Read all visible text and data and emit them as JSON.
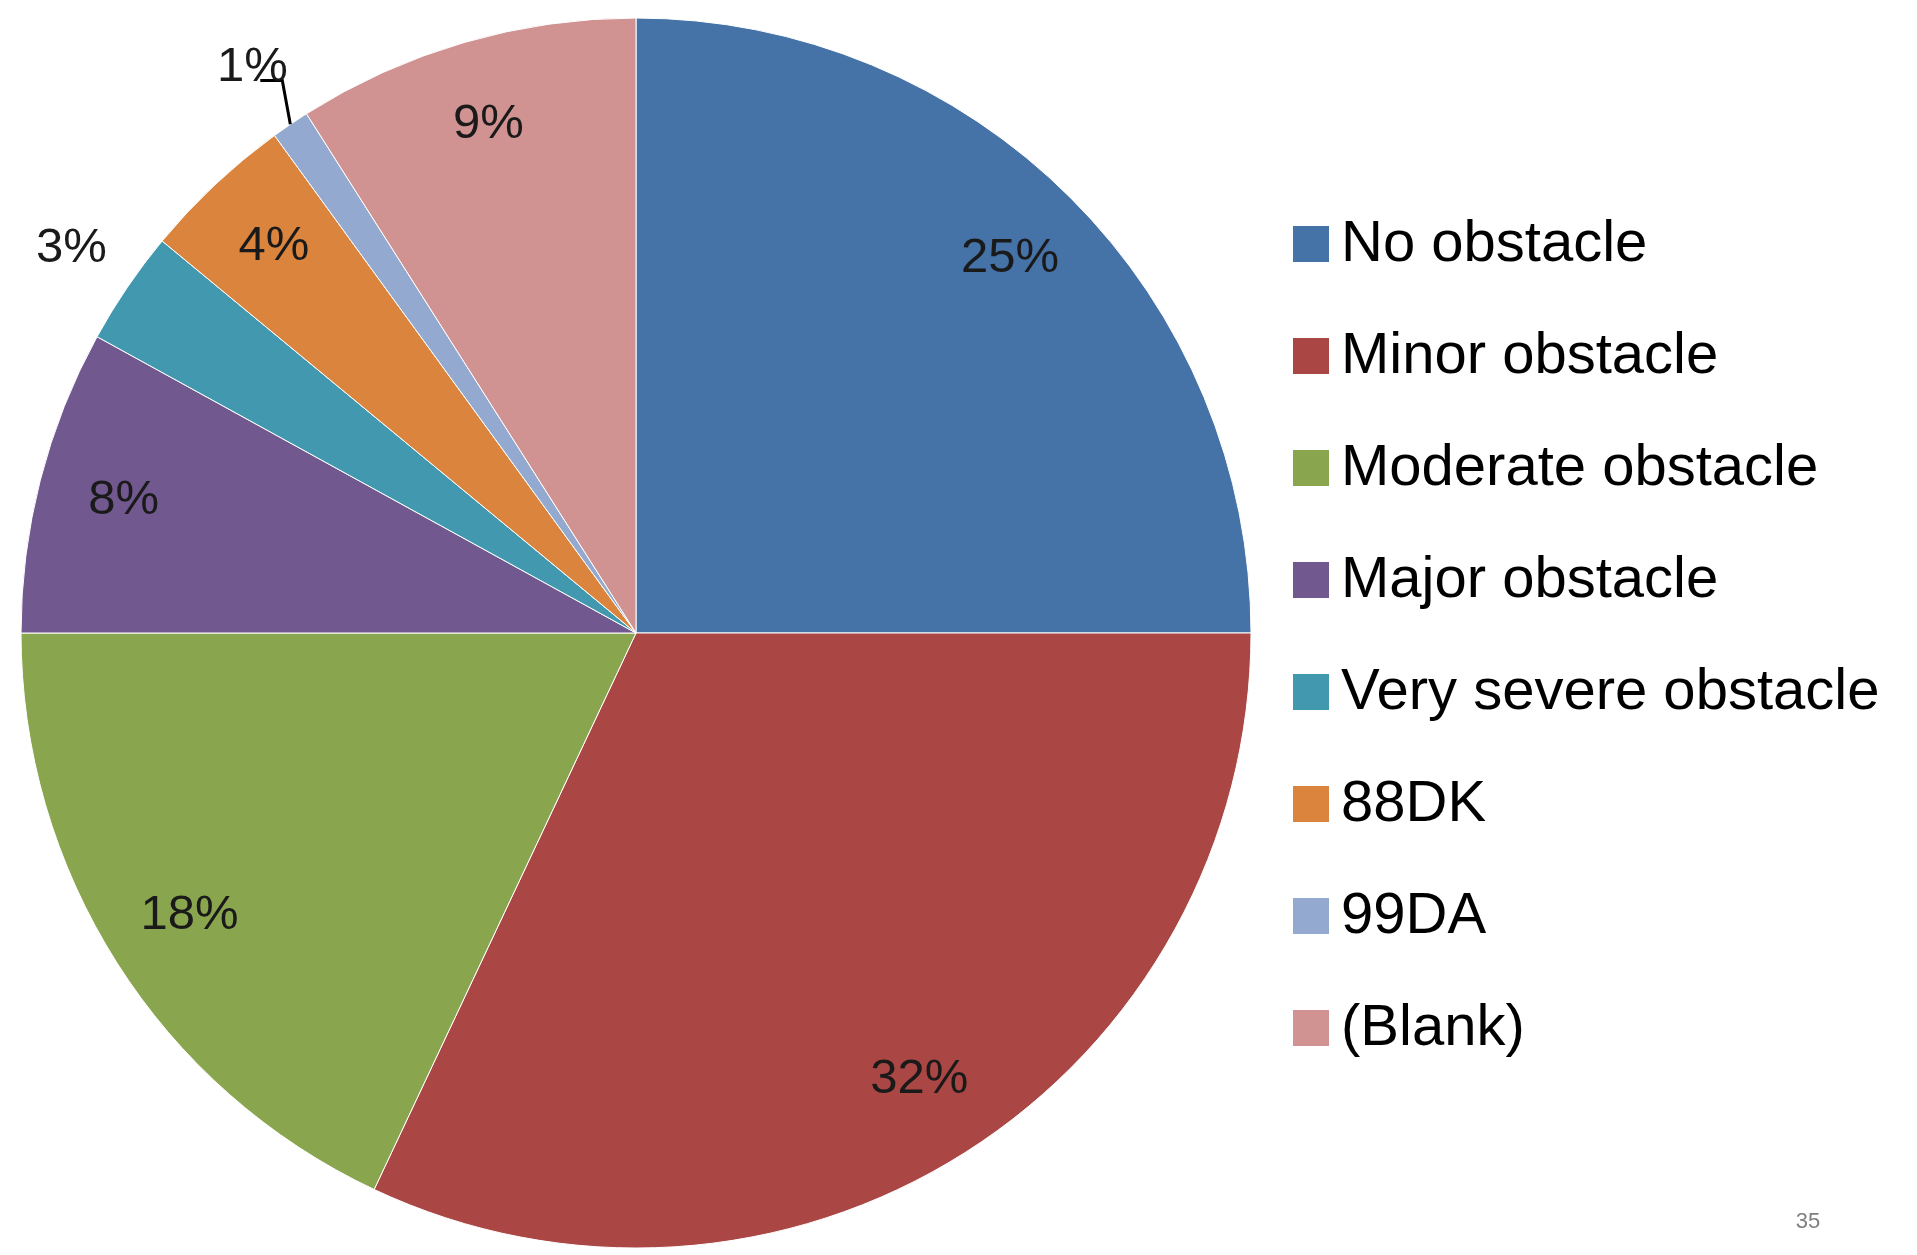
{
  "chart_data": {
    "type": "pie",
    "categories": [
      "No obstacle",
      "Minor obstacle",
      "Moderate obstacle",
      "Major obstacle",
      "Very severe obstacle",
      "88DK",
      "99DA",
      "(Blank)"
    ],
    "values": [
      25,
      32,
      18,
      8,
      3,
      4,
      1,
      9
    ],
    "colors": [
      "#4572a7",
      "#aa4643",
      "#89a54e",
      "#71588f",
      "#4198af",
      "#db843d",
      "#93a9cf",
      "#d19392"
    ],
    "value_labels": [
      "25%",
      "32%",
      "18%",
      "8%",
      "3%",
      "4%",
      "1%",
      "9%"
    ],
    "legend": "right",
    "annotations": [
      "35"
    ]
  }
}
